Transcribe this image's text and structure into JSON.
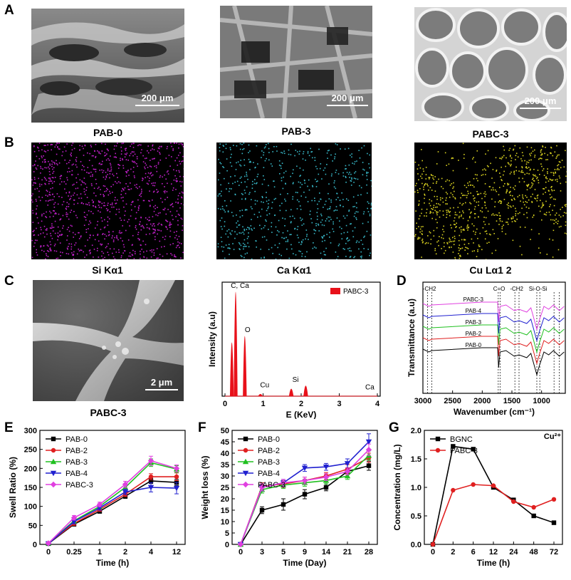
{
  "panels": {
    "A": {
      "label": "A",
      "images": [
        {
          "caption": "PAB-0",
          "scale": "200 μm"
        },
        {
          "caption": "PAB-3",
          "scale": "200 μm"
        },
        {
          "caption": "PABC-3",
          "scale": "200 μm"
        }
      ]
    },
    "B": {
      "label": "B",
      "maps": [
        {
          "caption": "Si Kα1",
          "color": "#c020c8"
        },
        {
          "caption": "Ca Kα1",
          "color": "#38b8c8"
        },
        {
          "caption": "Cu Lα1 2",
          "color": "#d8d020"
        }
      ]
    },
    "C": {
      "label": "C",
      "caption": "PABC-3",
      "scale": "2 μm"
    },
    "D": {
      "label": "D"
    },
    "E": {
      "label": "E"
    },
    "F": {
      "label": "F"
    },
    "G": {
      "label": "G"
    }
  },
  "chart_data": [
    {
      "id": "C-eds",
      "type": "area",
      "xlabel": "E (KeV)",
      "ylabel": "Intensity (a.u)",
      "xlim": [
        0,
        4
      ],
      "xticks": [
        0,
        1,
        2,
        3,
        4
      ],
      "legend": [
        "PABC-3"
      ],
      "legend_position": "top-right",
      "series_color": "#e8111a",
      "peaks": [
        {
          "label": "C, Ca",
          "x": 0.28,
          "height": 1.0
        },
        {
          "label": "",
          "x": 0.18,
          "height": 0.52
        },
        {
          "label": "O",
          "x": 0.52,
          "height": 0.58
        },
        {
          "label": "Cu",
          "x": 0.93,
          "height": 0.03
        },
        {
          "label": "Si",
          "x": 1.74,
          "height": 0.08
        },
        {
          "label": "",
          "x": 2.12,
          "height": 0.11
        },
        {
          "label": "Ca",
          "x": 3.69,
          "height": 0.01
        }
      ]
    },
    {
      "id": "D-ftir",
      "type": "line",
      "xlabel": "Wavenumber (cm⁻¹)",
      "ylabel": "Transmittance (a.u)",
      "xlim": [
        3000,
        600
      ],
      "xticks": [
        3000,
        2500,
        2000,
        1500,
        1000
      ],
      "annotations": [
        "-CH2",
        "C=O",
        "-CH2",
        "Si-O-Si"
      ],
      "series": [
        {
          "name": "PABC-3",
          "color": "#e040e0"
        },
        {
          "name": "PAB-4",
          "color": "#2020d0"
        },
        {
          "name": "PAB-3",
          "color": "#20c020"
        },
        {
          "name": "PAB-2",
          "color": "#e02020"
        },
        {
          "name": "PAB-0",
          "color": "#000000"
        }
      ]
    },
    {
      "id": "E-swell",
      "type": "line",
      "xlabel": "Time (h)",
      "ylabel": "Swell Ratio (%)",
      "categories": [
        "0",
        "0.25",
        "1",
        "2",
        "4",
        "12"
      ],
      "ylim": [
        0,
        300
      ],
      "yticks": [
        0,
        50,
        100,
        150,
        200,
        250,
        300
      ],
      "legend_position": "top-left",
      "series": [
        {
          "name": "PAB-0",
          "color": "#000000",
          "marker": "square",
          "values": [
            2,
            53,
            87,
            127,
            167,
            163
          ],
          "errors": [
            3,
            5,
            5,
            6,
            7,
            8
          ]
        },
        {
          "name": "PAB-2",
          "color": "#e02020",
          "marker": "circle",
          "values": [
            3,
            55,
            92,
            132,
            178,
            178
          ],
          "errors": [
            3,
            5,
            5,
            6,
            8,
            10
          ]
        },
        {
          "name": "PAB-3",
          "color": "#20c020",
          "marker": "triangle",
          "values": [
            3,
            62,
            100,
            150,
            215,
            198
          ],
          "errors": [
            3,
            6,
            6,
            8,
            10,
            9
          ]
        },
        {
          "name": "PAB-4",
          "color": "#2020d0",
          "marker": "triangle-down",
          "values": [
            2,
            60,
            96,
            138,
            150,
            148
          ],
          "errors": [
            3,
            6,
            6,
            7,
            12,
            15
          ]
        },
        {
          "name": "PABC-3",
          "color": "#e040e0",
          "marker": "diamond",
          "values": [
            3,
            70,
            105,
            158,
            220,
            200
          ],
          "errors": [
            3,
            6,
            6,
            8,
            12,
            9
          ]
        }
      ]
    },
    {
      "id": "F-weightloss",
      "type": "line",
      "xlabel": "Time (Day)",
      "ylabel": "Weight loss (%)",
      "categories": [
        "0",
        "3",
        "5",
        "9",
        "14",
        "21",
        "28"
      ],
      "ylim": [
        0,
        50
      ],
      "yticks": [
        0,
        5,
        10,
        15,
        20,
        25,
        30,
        35,
        40,
        45,
        50
      ],
      "legend_position": "top-left",
      "series": [
        {
          "name": "PAB-0",
          "color": "#000000",
          "marker": "square",
          "values": [
            0,
            15,
            17.5,
            22,
            25,
            32,
            34.5
          ],
          "errors": [
            0,
            1.5,
            2.5,
            2,
            1.5,
            1.5,
            2
          ]
        },
        {
          "name": "PAB-2",
          "color": "#e02020",
          "marker": "circle",
          "values": [
            0,
            25.5,
            26.5,
            28,
            30,
            33,
            38
          ],
          "errors": [
            0,
            1.5,
            1.5,
            1.5,
            1.5,
            2,
            2
          ]
        },
        {
          "name": "PAB-3",
          "color": "#20c020",
          "marker": "triangle",
          "values": [
            0,
            24,
            26,
            27,
            28,
            30,
            39
          ],
          "errors": [
            0,
            1.5,
            1.5,
            1.5,
            1.5,
            1.5,
            2
          ]
        },
        {
          "name": "PAB-4",
          "color": "#2020d0",
          "marker": "triangle-down",
          "values": [
            0,
            25,
            27,
            33.5,
            34,
            35.5,
            45
          ],
          "errors": [
            0,
            1.5,
            1.5,
            1.5,
            1.5,
            2,
            3.5
          ]
        },
        {
          "name": "PABC-3",
          "color": "#e040e0",
          "marker": "diamond",
          "values": [
            0,
            25,
            27,
            28,
            29.5,
            32,
            41.5
          ],
          "errors": [
            0,
            1.5,
            1.5,
            1.5,
            1.5,
            1.5,
            2.5
          ]
        }
      ]
    },
    {
      "id": "G-concentration",
      "type": "line",
      "xlabel": "Time (h)",
      "ylabel": "Concentration (mg/L)",
      "annotation": "Cu²⁺",
      "categories": [
        "0",
        "2",
        "6",
        "12",
        "24",
        "48",
        "72"
      ],
      "ylim": [
        0,
        2.0
      ],
      "yticks": [
        0.0,
        0.5,
        1.0,
        1.5,
        2.0
      ],
      "legend_position": "top-left",
      "series": [
        {
          "name": "BGNC",
          "color": "#000000",
          "marker": "square",
          "values": [
            0,
            1.72,
            1.67,
            1.0,
            0.78,
            0.5,
            0.38
          ]
        },
        {
          "name": "PABC-3",
          "color": "#e02020",
          "marker": "circle",
          "values": [
            0,
            0.95,
            1.05,
            1.03,
            0.75,
            0.65,
            0.79
          ]
        }
      ]
    }
  ]
}
